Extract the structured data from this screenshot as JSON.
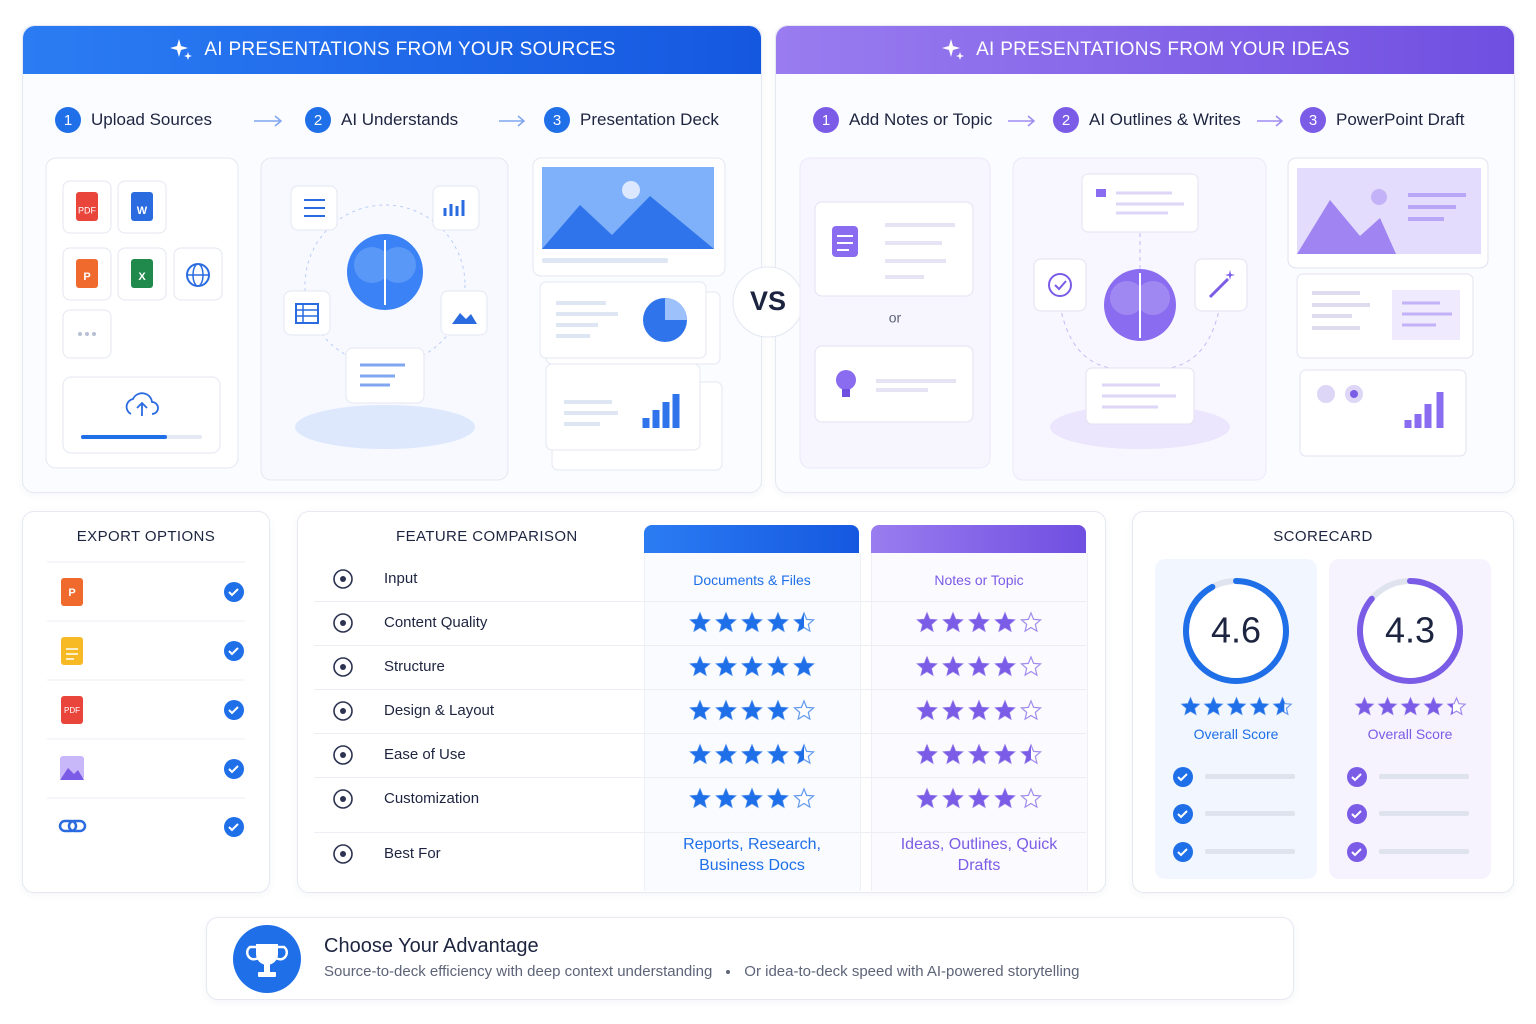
{
  "panels": [
    {
      "title": "AI PRESENTATIONS FROM YOUR SOURCES",
      "steps": [
        {
          "number": "1",
          "label": "Upload Sources"
        },
        {
          "number": "2",
          "label": "AI Understands"
        },
        {
          "number": "3",
          "label": "Presentation Deck"
        }
      ],
      "file_labels": [
        "PDF",
        "W",
        "P",
        "X"
      ],
      "color": "#1f6fe8"
    },
    {
      "title": "AI PRESENTATIONS FROM YOUR IDEAS",
      "steps": [
        {
          "number": "1",
          "label": "Add Notes or Topic"
        },
        {
          "number": "2",
          "label": "AI Outlines & Writes"
        },
        {
          "number": "3",
          "label": "PowerPoint Draft"
        }
      ],
      "or": "or",
      "color": "#7b5ce6"
    }
  ],
  "vs": "VS",
  "export": {
    "title": "EXPORT OPTIONS",
    "icon_labels": [
      "P",
      "PDF"
    ]
  },
  "comparison": {
    "title": "FEATURE COMPARISON",
    "rows": [
      {
        "feature": "Input",
        "values": [
          "Documents & Files",
          "Notes or Topic"
        ]
      },
      {
        "feature": "Content Quality",
        "ratings": [
          4.5,
          4
        ]
      },
      {
        "feature": "Structure",
        "ratings": [
          5,
          4
        ]
      },
      {
        "feature": "Design & Layout",
        "ratings": [
          4,
          4
        ]
      },
      {
        "feature": "Ease of Use",
        "ratings": [
          4.5,
          4.5
        ]
      },
      {
        "feature": "Customization",
        "ratings": [
          4,
          4
        ]
      },
      {
        "feature": "Best For",
        "values": [
          "Reports, Research, Business Docs",
          "Ideas, Outlines, Quick Drafts"
        ]
      }
    ]
  },
  "scorecard": {
    "title": "SCORECARD",
    "scores": [
      {
        "value": 4.6,
        "label": "Overall Score",
        "color": "#1f6fe8"
      },
      {
        "value": 4.3,
        "label": "Overall Score",
        "color": "#7b5ce6"
      }
    ]
  },
  "footer": {
    "title": "Choose Your Advantage",
    "points": [
      "Source-to-deck efficiency with deep context understanding",
      "Or idea-to-deck speed with AI-powered storytelling"
    ]
  }
}
